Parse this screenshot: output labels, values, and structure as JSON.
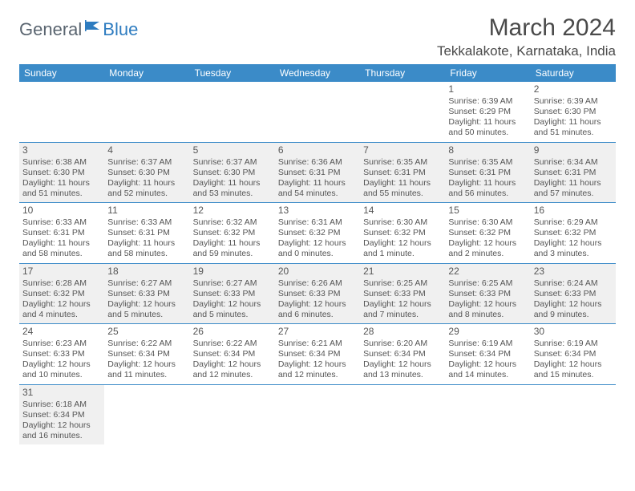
{
  "logo": {
    "text1": "General",
    "text2": "Blue"
  },
  "title": "March 2024",
  "location": "Tekkalakote, Karnataka, India",
  "colors": {
    "header_bg": "#3b8bc8",
    "header_text": "#ffffff",
    "row_shade": "#f0f0f0",
    "border": "#3b8bc8",
    "text": "#4a4a4a",
    "logo_gray": "#5a6570",
    "logo_blue": "#2e7cc0"
  },
  "daynames": [
    "Sunday",
    "Monday",
    "Tuesday",
    "Wednesday",
    "Thursday",
    "Friday",
    "Saturday"
  ],
  "weeks": [
    {
      "shade": false,
      "cells": [
        {
          "empty": true
        },
        {
          "empty": true
        },
        {
          "empty": true
        },
        {
          "empty": true
        },
        {
          "empty": true
        },
        {
          "n": "1",
          "sr": "Sunrise: 6:39 AM",
          "ss": "Sunset: 6:29 PM",
          "dl1": "Daylight: 11 hours",
          "dl2": "and 50 minutes."
        },
        {
          "n": "2",
          "sr": "Sunrise: 6:39 AM",
          "ss": "Sunset: 6:30 PM",
          "dl1": "Daylight: 11 hours",
          "dl2": "and 51 minutes."
        }
      ]
    },
    {
      "shade": true,
      "cells": [
        {
          "n": "3",
          "sr": "Sunrise: 6:38 AM",
          "ss": "Sunset: 6:30 PM",
          "dl1": "Daylight: 11 hours",
          "dl2": "and 51 minutes."
        },
        {
          "n": "4",
          "sr": "Sunrise: 6:37 AM",
          "ss": "Sunset: 6:30 PM",
          "dl1": "Daylight: 11 hours",
          "dl2": "and 52 minutes."
        },
        {
          "n": "5",
          "sr": "Sunrise: 6:37 AM",
          "ss": "Sunset: 6:30 PM",
          "dl1": "Daylight: 11 hours",
          "dl2": "and 53 minutes."
        },
        {
          "n": "6",
          "sr": "Sunrise: 6:36 AM",
          "ss": "Sunset: 6:31 PM",
          "dl1": "Daylight: 11 hours",
          "dl2": "and 54 minutes."
        },
        {
          "n": "7",
          "sr": "Sunrise: 6:35 AM",
          "ss": "Sunset: 6:31 PM",
          "dl1": "Daylight: 11 hours",
          "dl2": "and 55 minutes."
        },
        {
          "n": "8",
          "sr": "Sunrise: 6:35 AM",
          "ss": "Sunset: 6:31 PM",
          "dl1": "Daylight: 11 hours",
          "dl2": "and 56 minutes."
        },
        {
          "n": "9",
          "sr": "Sunrise: 6:34 AM",
          "ss": "Sunset: 6:31 PM",
          "dl1": "Daylight: 11 hours",
          "dl2": "and 57 minutes."
        }
      ]
    },
    {
      "shade": false,
      "cells": [
        {
          "n": "10",
          "sr": "Sunrise: 6:33 AM",
          "ss": "Sunset: 6:31 PM",
          "dl1": "Daylight: 11 hours",
          "dl2": "and 58 minutes."
        },
        {
          "n": "11",
          "sr": "Sunrise: 6:33 AM",
          "ss": "Sunset: 6:31 PM",
          "dl1": "Daylight: 11 hours",
          "dl2": "and 58 minutes."
        },
        {
          "n": "12",
          "sr": "Sunrise: 6:32 AM",
          "ss": "Sunset: 6:32 PM",
          "dl1": "Daylight: 11 hours",
          "dl2": "and 59 minutes."
        },
        {
          "n": "13",
          "sr": "Sunrise: 6:31 AM",
          "ss": "Sunset: 6:32 PM",
          "dl1": "Daylight: 12 hours",
          "dl2": "and 0 minutes."
        },
        {
          "n": "14",
          "sr": "Sunrise: 6:30 AM",
          "ss": "Sunset: 6:32 PM",
          "dl1": "Daylight: 12 hours",
          "dl2": "and 1 minute."
        },
        {
          "n": "15",
          "sr": "Sunrise: 6:30 AM",
          "ss": "Sunset: 6:32 PM",
          "dl1": "Daylight: 12 hours",
          "dl2": "and 2 minutes."
        },
        {
          "n": "16",
          "sr": "Sunrise: 6:29 AM",
          "ss": "Sunset: 6:32 PM",
          "dl1": "Daylight: 12 hours",
          "dl2": "and 3 minutes."
        }
      ]
    },
    {
      "shade": true,
      "cells": [
        {
          "n": "17",
          "sr": "Sunrise: 6:28 AM",
          "ss": "Sunset: 6:32 PM",
          "dl1": "Daylight: 12 hours",
          "dl2": "and 4 minutes."
        },
        {
          "n": "18",
          "sr": "Sunrise: 6:27 AM",
          "ss": "Sunset: 6:33 PM",
          "dl1": "Daylight: 12 hours",
          "dl2": "and 5 minutes."
        },
        {
          "n": "19",
          "sr": "Sunrise: 6:27 AM",
          "ss": "Sunset: 6:33 PM",
          "dl1": "Daylight: 12 hours",
          "dl2": "and 5 minutes."
        },
        {
          "n": "20",
          "sr": "Sunrise: 6:26 AM",
          "ss": "Sunset: 6:33 PM",
          "dl1": "Daylight: 12 hours",
          "dl2": "and 6 minutes."
        },
        {
          "n": "21",
          "sr": "Sunrise: 6:25 AM",
          "ss": "Sunset: 6:33 PM",
          "dl1": "Daylight: 12 hours",
          "dl2": "and 7 minutes."
        },
        {
          "n": "22",
          "sr": "Sunrise: 6:25 AM",
          "ss": "Sunset: 6:33 PM",
          "dl1": "Daylight: 12 hours",
          "dl2": "and 8 minutes."
        },
        {
          "n": "23",
          "sr": "Sunrise: 6:24 AM",
          "ss": "Sunset: 6:33 PM",
          "dl1": "Daylight: 12 hours",
          "dl2": "and 9 minutes."
        }
      ]
    },
    {
      "shade": false,
      "cells": [
        {
          "n": "24",
          "sr": "Sunrise: 6:23 AM",
          "ss": "Sunset: 6:33 PM",
          "dl1": "Daylight: 12 hours",
          "dl2": "and 10 minutes."
        },
        {
          "n": "25",
          "sr": "Sunrise: 6:22 AM",
          "ss": "Sunset: 6:34 PM",
          "dl1": "Daylight: 12 hours",
          "dl2": "and 11 minutes."
        },
        {
          "n": "26",
          "sr": "Sunrise: 6:22 AM",
          "ss": "Sunset: 6:34 PM",
          "dl1": "Daylight: 12 hours",
          "dl2": "and 12 minutes."
        },
        {
          "n": "27",
          "sr": "Sunrise: 6:21 AM",
          "ss": "Sunset: 6:34 PM",
          "dl1": "Daylight: 12 hours",
          "dl2": "and 12 minutes."
        },
        {
          "n": "28",
          "sr": "Sunrise: 6:20 AM",
          "ss": "Sunset: 6:34 PM",
          "dl1": "Daylight: 12 hours",
          "dl2": "and 13 minutes."
        },
        {
          "n": "29",
          "sr": "Sunrise: 6:19 AM",
          "ss": "Sunset: 6:34 PM",
          "dl1": "Daylight: 12 hours",
          "dl2": "and 14 minutes."
        },
        {
          "n": "30",
          "sr": "Sunrise: 6:19 AM",
          "ss": "Sunset: 6:34 PM",
          "dl1": "Daylight: 12 hours",
          "dl2": "and 15 minutes."
        }
      ]
    },
    {
      "shade": true,
      "cells": [
        {
          "n": "31",
          "sr": "Sunrise: 6:18 AM",
          "ss": "Sunset: 6:34 PM",
          "dl1": "Daylight: 12 hours",
          "dl2": "and 16 minutes."
        },
        {
          "empty": true
        },
        {
          "empty": true
        },
        {
          "empty": true
        },
        {
          "empty": true
        },
        {
          "empty": true
        },
        {
          "empty": true
        }
      ]
    }
  ]
}
